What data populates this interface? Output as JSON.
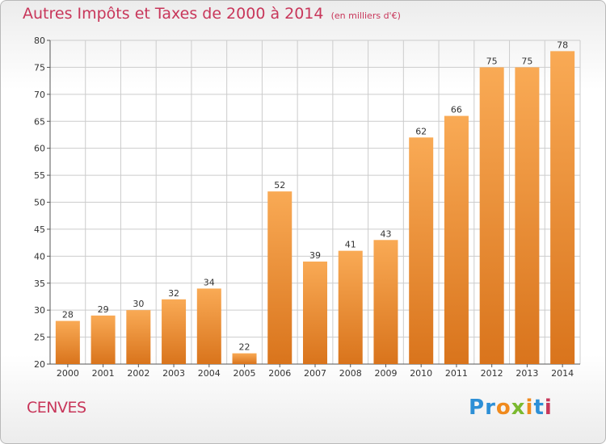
{
  "header": {
    "title": "Autres Impôts et Taxes de 2000 à 2014",
    "subtitle": "(en milliers d'€)"
  },
  "footer": {
    "commune": "CENVES",
    "logo_text": "Proxiti"
  },
  "colors": {
    "title": "#c8365a",
    "bar_light": "#f9aa55",
    "bar_dark": "#d9741c",
    "grid": "#cccccc",
    "logo_letters": [
      "#2d8fd6",
      "#2d8fd6",
      "#f08a1d",
      "#7bb92f",
      "#f08a1d",
      "#2d8fd6",
      "#c8365a"
    ]
  },
  "chart_data": {
    "type": "bar",
    "title": "Autres Impôts et Taxes de 2000 à 2014",
    "subtitle": "(en milliers d'€)",
    "categories": [
      "2000",
      "2001",
      "2002",
      "2003",
      "2004",
      "2005",
      "2006",
      "2007",
      "2008",
      "2009",
      "2010",
      "2011",
      "2012",
      "2013",
      "2014"
    ],
    "values": [
      28,
      29,
      30,
      32,
      34,
      22,
      52,
      39,
      41,
      43,
      62,
      66,
      75,
      75,
      78
    ],
    "ylim": [
      20,
      80
    ],
    "yticks": [
      20,
      25,
      30,
      35,
      40,
      45,
      50,
      55,
      60,
      65,
      70,
      75,
      80
    ],
    "grid": true,
    "data_labels": true
  }
}
